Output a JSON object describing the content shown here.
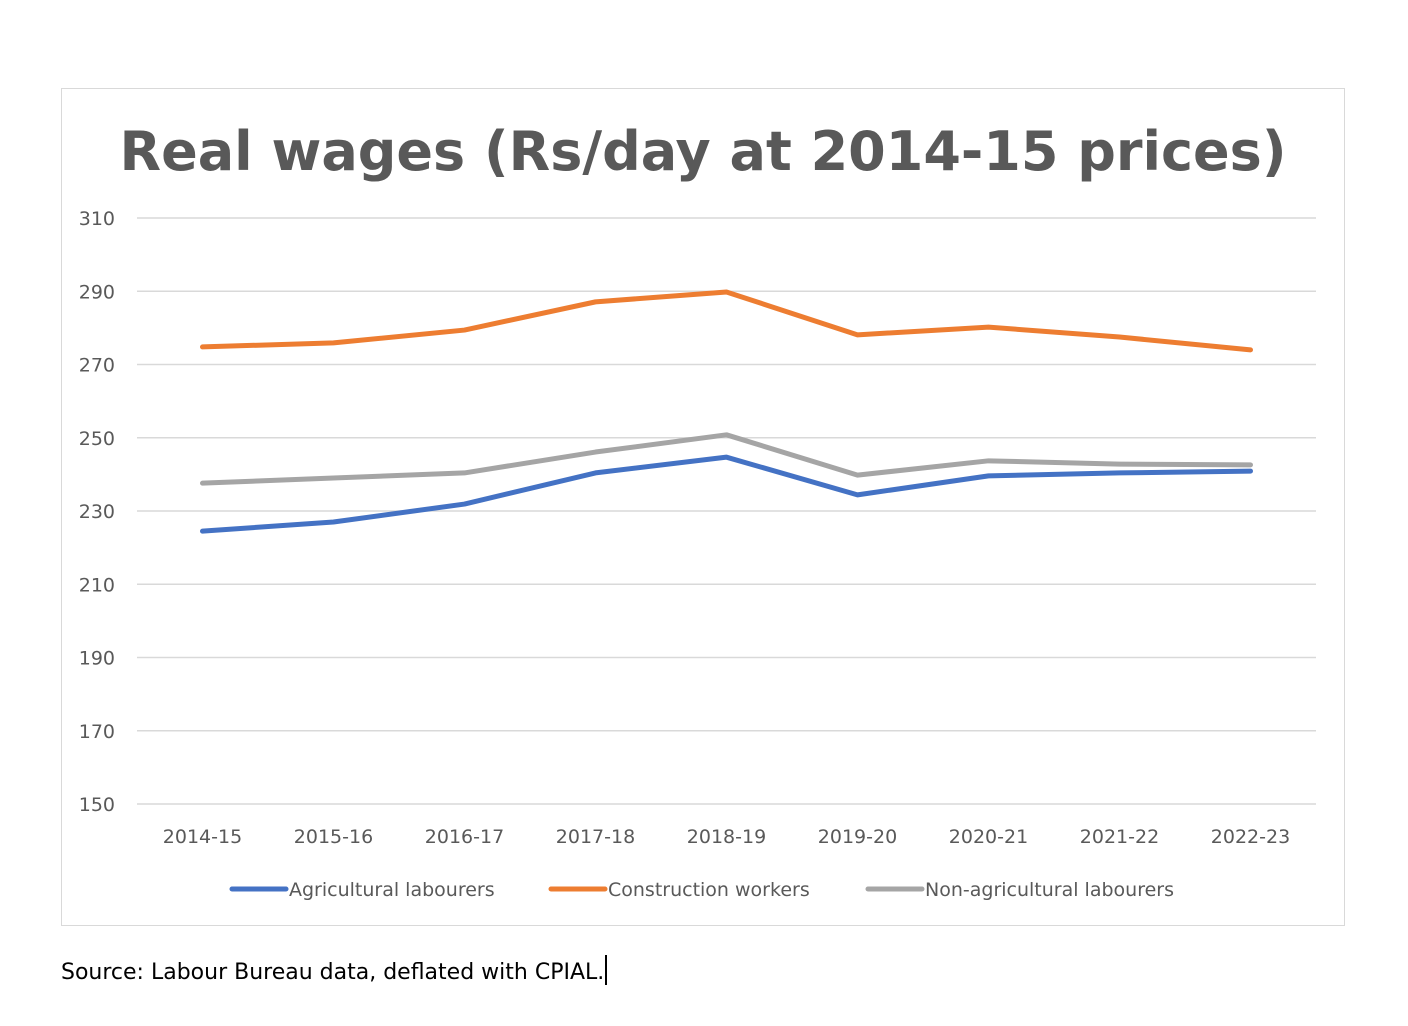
{
  "chart_data": {
    "type": "line",
    "title": "Real wages (Rs/day at 2014-15 prices)",
    "xlabel": "",
    "ylabel": "",
    "categories": [
      "2014-15",
      "2015-16",
      "2016-17",
      "2017-18",
      "2018-19",
      "2019-20",
      "2020-21",
      "2021-22",
      "2022-23"
    ],
    "ylim": [
      150,
      310
    ],
    "yticks": [
      150,
      170,
      190,
      210,
      230,
      250,
      270,
      290,
      310
    ],
    "grid": true,
    "legend": "bottom",
    "series": [
      {
        "name": "Agricultural labourers",
        "color": "#4472c4",
        "values": [
          224.5,
          227.0,
          231.9,
          240.4,
          244.7,
          234.4,
          239.6,
          240.4,
          240.9
        ]
      },
      {
        "name": "Construction workers",
        "color": "#ed7d31",
        "values": [
          274.8,
          275.9,
          279.4,
          287.1,
          289.8,
          278.1,
          280.2,
          277.5,
          274.0
        ]
      },
      {
        "name": "Non-agricultural labourers",
        "color": "#a5a5a5",
        "values": [
          237.6,
          239.0,
          240.4,
          246.1,
          250.8,
          239.8,
          243.7,
          242.8,
          242.6
        ]
      }
    ]
  },
  "source": "Source: Labour Bureau data, deflated with CPIAL."
}
